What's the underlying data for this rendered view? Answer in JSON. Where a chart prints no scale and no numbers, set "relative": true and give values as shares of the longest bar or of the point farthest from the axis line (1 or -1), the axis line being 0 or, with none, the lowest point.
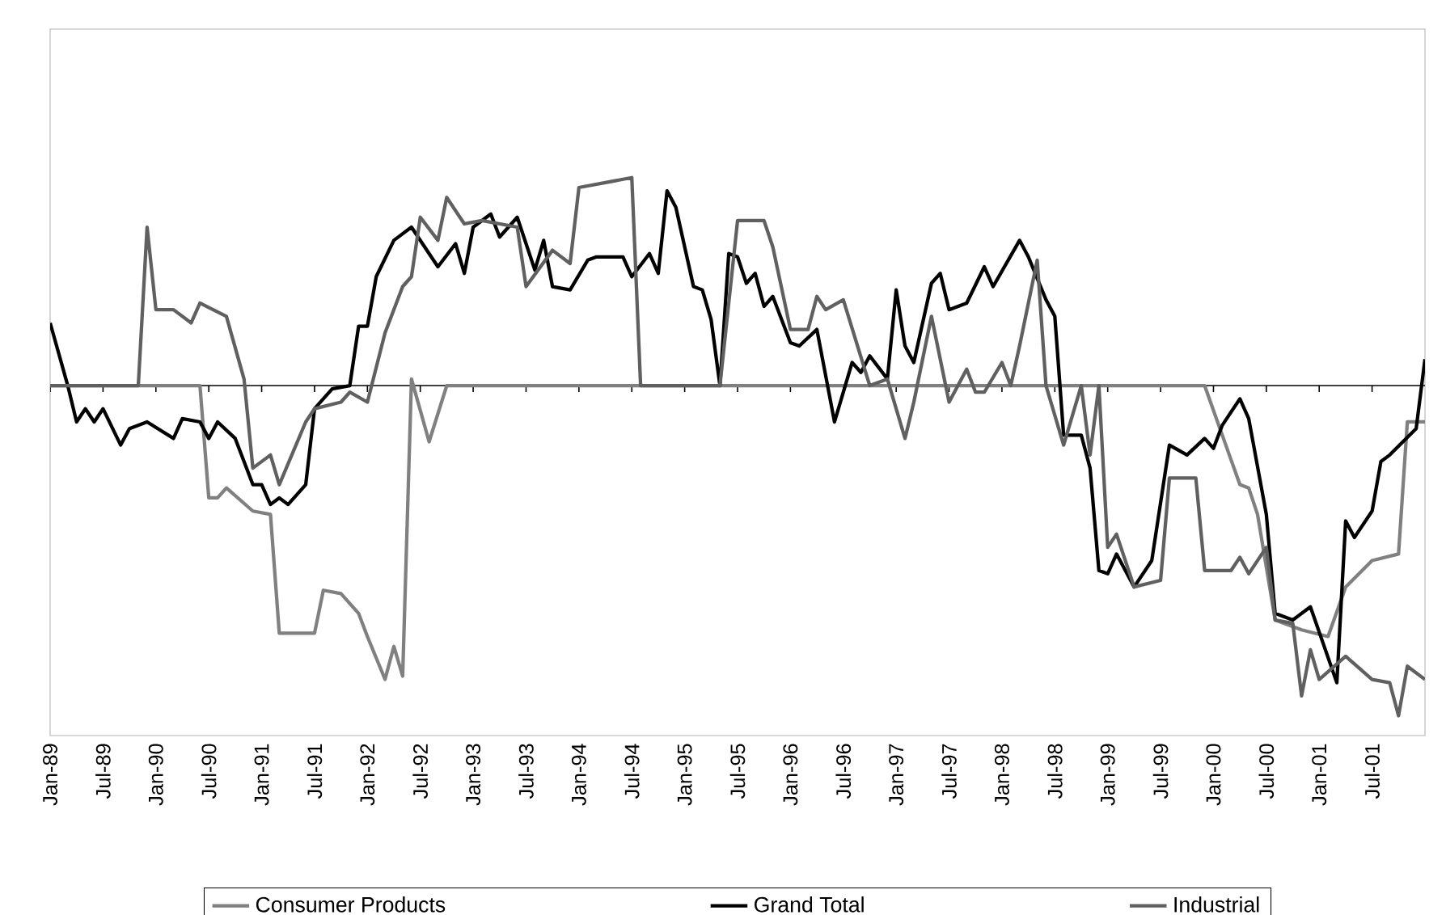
{
  "chart_data": {
    "type": "line",
    "relative": true,
    "legend": "bottom",
    "xlim": [
      "1989-01",
      "2002-01"
    ],
    "xticks": [
      {
        "value": "1989-01",
        "label": "Jan-89"
      },
      {
        "value": "1989-07",
        "label": "Jul-89"
      },
      {
        "value": "1990-01",
        "label": "Jan-90"
      },
      {
        "value": "1990-07",
        "label": "Jul-90"
      },
      {
        "value": "1991-01",
        "label": "Jan-91"
      },
      {
        "value": "1991-07",
        "label": "Jul-91"
      },
      {
        "value": "1992-01",
        "label": "Jan-92"
      },
      {
        "value": "1992-07",
        "label": "Jul-92"
      },
      {
        "value": "1993-01",
        "label": "Jan-93"
      },
      {
        "value": "1993-07",
        "label": "Jul-93"
      },
      {
        "value": "1994-01",
        "label": "Jan-94"
      },
      {
        "value": "1994-07",
        "label": "Jul-94"
      },
      {
        "value": "1995-01",
        "label": "Jan-95"
      },
      {
        "value": "1995-07",
        "label": "Jul-95"
      },
      {
        "value": "1996-01",
        "label": "Jan-96"
      },
      {
        "value": "1996-07",
        "label": "Jul-96"
      },
      {
        "value": "1997-01",
        "label": "Jan-97"
      },
      {
        "value": "1997-07",
        "label": "Jul-97"
      },
      {
        "value": "1998-01",
        "label": "Jan-98"
      },
      {
        "value": "1998-07",
        "label": "Jul-98"
      },
      {
        "value": "1999-01",
        "label": "Jan-99"
      },
      {
        "value": "1999-07",
        "label": "Jul-99"
      },
      {
        "value": "2000-01",
        "label": "Jan-00"
      },
      {
        "value": "2000-07",
        "label": "Jul-00"
      },
      {
        "value": "2001-01",
        "label": "Jan-01"
      },
      {
        "value": "2001-07",
        "label": "Jul-01"
      }
    ],
    "series": [
      {
        "name": "Consumer Products",
        "color": "#808080",
        "x": [
          "1989-01",
          "1990-06",
          "1990-07",
          "1990-08",
          "1990-09",
          "1990-12",
          "1991-02",
          "1991-03",
          "1991-07",
          "1991-08",
          "1991-10",
          "1991-12",
          "1992-01",
          "1992-03",
          "1992-04",
          "1992-05",
          "1992-06",
          "1992-08",
          "1992-10",
          "1999-12",
          "2000-04",
          "2000-05",
          "2000-06",
          "2000-08",
          "2000-11",
          "2001-02",
          "2001-04",
          "2001-07",
          "2001-10",
          "2001-11",
          "2002-01"
        ],
        "values": [
          0,
          0,
          -0.34,
          -0.34,
          -0.31,
          -0.38,
          -0.39,
          -0.75,
          -0.75,
          -0.62,
          -0.63,
          -0.69,
          -0.76,
          -0.89,
          -0.79,
          -0.88,
          0.02,
          -0.17,
          0,
          0,
          -0.3,
          -0.31,
          -0.39,
          -0.71,
          -0.74,
          -0.76,
          -0.61,
          -0.53,
          -0.51,
          -0.11,
          -0.11
        ]
      },
      {
        "name": "Grand Total",
        "color": "#000000",
        "x": [
          "1989-01",
          "1989-03",
          "1989-04",
          "1989-05",
          "1989-06",
          "1989-07",
          "1989-09",
          "1989-10",
          "1989-12",
          "1990-03",
          "1990-04",
          "1990-06",
          "1990-07",
          "1990-08",
          "1990-10",
          "1990-12",
          "1991-01",
          "1991-02",
          "1991-03",
          "1991-04",
          "1991-06",
          "1991-07",
          "1991-09",
          "1991-11",
          "1991-12",
          "1992-01",
          "1992-02",
          "1992-04",
          "1992-06",
          "1992-08",
          "1992-09",
          "1992-11",
          "1992-12",
          "1993-01",
          "1993-03",
          "1993-04",
          "1993-06",
          "1993-08",
          "1993-09",
          "1993-10",
          "1993-12",
          "1994-02",
          "1994-03",
          "1994-06",
          "1994-07",
          "1994-09",
          "1994-10",
          "1994-11",
          "1994-12",
          "1995-02",
          "1995-03",
          "1995-04",
          "1995-05",
          "1995-06",
          "1995-07",
          "1995-08",
          "1995-09",
          "1995-10",
          "1995-11",
          "1996-01",
          "1996-02",
          "1996-04",
          "1996-06",
          "1996-08",
          "1996-09",
          "1996-10",
          "1996-12",
          "1997-01",
          "1997-02",
          "1997-03",
          "1997-05",
          "1997-06",
          "1997-07",
          "1997-09",
          "1997-11",
          "1997-12",
          "1998-03",
          "1998-04",
          "1998-06",
          "1998-07",
          "1998-08",
          "1998-10",
          "1998-11",
          "1998-12",
          "1999-01",
          "1999-02",
          "1999-04",
          "1999-06",
          "1999-08",
          "1999-10",
          "1999-12",
          "2000-01",
          "2000-02",
          "2000-04",
          "2000-05",
          "2000-07",
          "2000-08",
          "2000-10",
          "2000-12",
          "2001-03",
          "2001-04",
          "2001-05",
          "2001-07",
          "2001-08",
          "2001-09",
          "2001-12",
          "2002-01"
        ],
        "values": [
          0.19,
          0,
          -0.11,
          -0.07,
          -0.11,
          -0.07,
          -0.18,
          -0.13,
          -0.11,
          -0.16,
          -0.1,
          -0.11,
          -0.16,
          -0.11,
          -0.16,
          -0.3,
          -0.3,
          -0.36,
          -0.34,
          -0.36,
          -0.3,
          -0.07,
          -0.01,
          0,
          0.18,
          0.18,
          0.33,
          0.44,
          0.48,
          0.4,
          0.36,
          0.43,
          0.34,
          0.48,
          0.52,
          0.45,
          0.51,
          0.35,
          0.44,
          0.3,
          0.29,
          0.38,
          0.39,
          0.39,
          0.33,
          0.4,
          0.34,
          0.59,
          0.54,
          0.3,
          0.29,
          0.2,
          0,
          0.4,
          0.39,
          0.31,
          0.34,
          0.24,
          0.27,
          0.13,
          0.12,
          0.17,
          -0.11,
          0.07,
          0.04,
          0.09,
          0.02,
          0.29,
          0.12,
          0.07,
          0.31,
          0.34,
          0.23,
          0.25,
          0.36,
          0.3,
          0.44,
          0.39,
          0.26,
          0.21,
          -0.15,
          -0.15,
          -0.25,
          -0.56,
          -0.57,
          -0.51,
          -0.61,
          -0.53,
          -0.18,
          -0.21,
          -0.16,
          -0.19,
          -0.12,
          -0.04,
          -0.1,
          -0.39,
          -0.69,
          -0.71,
          -0.67,
          -0.9,
          -0.41,
          -0.46,
          -0.38,
          -0.23,
          -0.21,
          -0.13,
          0.08
        ]
      },
      {
        "name": "Industrial",
        "color": "#606060",
        "x": [
          "1989-01",
          "1989-11",
          "1989-12",
          "1990-01",
          "1990-03",
          "1990-05",
          "1990-06",
          "1990-09",
          "1990-11",
          "1990-12",
          "1991-02",
          "1991-03",
          "1991-06",
          "1991-07",
          "1991-10",
          "1991-11",
          "1992-01",
          "1992-03",
          "1992-05",
          "1992-06",
          "1992-07",
          "1992-09",
          "1992-10",
          "1992-12",
          "1993-02",
          "1993-06",
          "1993-07",
          "1993-10",
          "1993-12",
          "1994-01",
          "1994-07",
          "1994-08",
          "1995-05",
          "1995-07",
          "1995-10",
          "1995-11",
          "1996-01",
          "1996-03",
          "1996-04",
          "1996-05",
          "1996-07",
          "1996-10",
          "1996-12",
          "1997-02",
          "1997-03",
          "1997-05",
          "1997-07",
          "1997-09",
          "1997-10",
          "1997-11",
          "1998-01",
          "1998-02",
          "1998-03",
          "1998-05",
          "1998-06",
          "1998-08",
          "1998-10",
          "1998-11",
          "1998-12",
          "1999-01",
          "1999-02",
          "1999-04",
          "1999-07",
          "1999-08",
          "1999-11",
          "1999-12",
          "2000-03",
          "2000-04",
          "2000-05",
          "2000-07",
          "2000-08",
          "2000-10",
          "2000-11",
          "2000-12",
          "2001-01",
          "2001-04",
          "2001-07",
          "2001-09",
          "2001-10",
          "2001-11",
          "2002-01"
        ],
        "values": [
          0,
          0,
          0.48,
          0.23,
          0.23,
          0.19,
          0.25,
          0.21,
          0.02,
          -0.25,
          -0.21,
          -0.3,
          -0.11,
          -0.07,
          -0.05,
          -0.02,
          -0.05,
          0.16,
          0.3,
          0.33,
          0.51,
          0.44,
          0.57,
          0.49,
          0.5,
          0.48,
          0.3,
          0.41,
          0.37,
          0.6,
          0.63,
          0,
          0,
          0.5,
          0.5,
          0.42,
          0.17,
          0.17,
          0.27,
          0.23,
          0.26,
          0,
          0.02,
          -0.16,
          -0.05,
          0.21,
          -0.05,
          0.05,
          -0.02,
          -0.02,
          0.07,
          0,
          0.12,
          0.38,
          0,
          -0.18,
          0,
          -0.21,
          0,
          -0.49,
          -0.45,
          -0.61,
          -0.59,
          -0.28,
          -0.28,
          -0.56,
          -0.56,
          -0.52,
          -0.57,
          -0.49,
          -0.71,
          -0.72,
          -0.94,
          -0.8,
          -0.89,
          -0.82,
          -0.89,
          -0.9,
          -1,
          -0.85,
          -0.89
        ]
      }
    ]
  }
}
